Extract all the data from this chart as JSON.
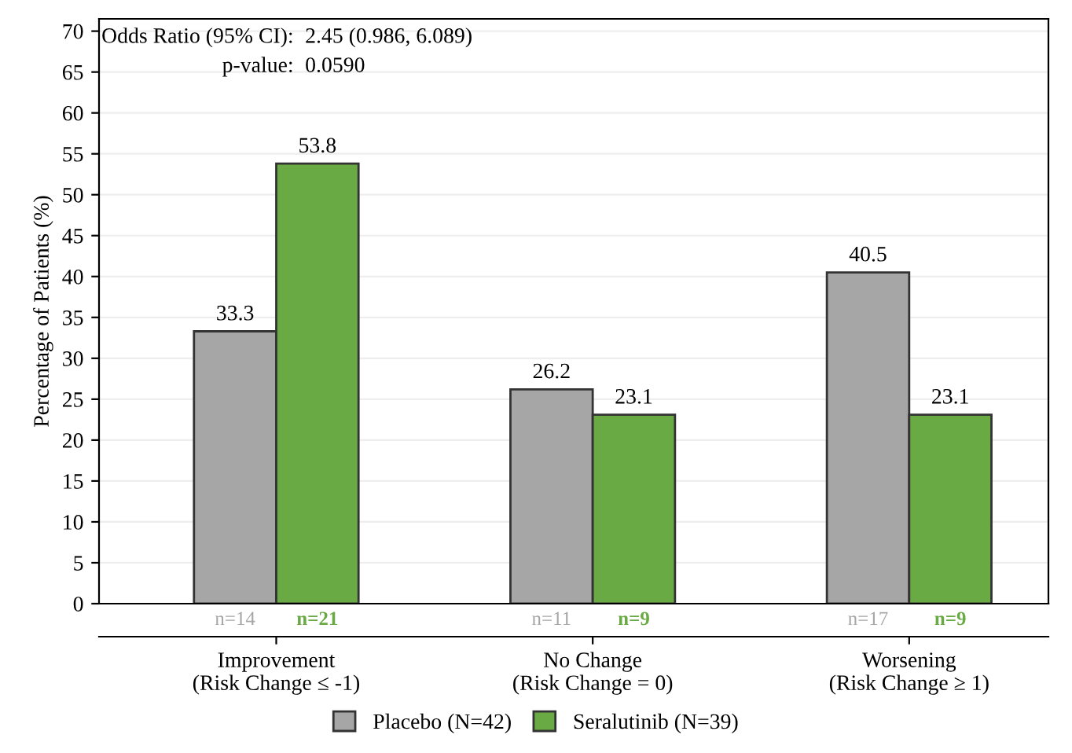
{
  "chart_data": {
    "type": "bar",
    "ylabel": "Percentage of Patients (%)",
    "categories": [
      "Improvement\n(Risk Change ≤ -1)",
      "No Change\n(Risk Change = 0)",
      "Worsening\n(Risk Change ≥ 1)"
    ],
    "series": [
      {
        "name": "Placebo (N=42)",
        "color": "#a6a6a6",
        "values": [
          33.3,
          26.2,
          40.5
        ]
      },
      {
        "name": "Seralutinib (N=39)",
        "color": "#6aaa45",
        "values": [
          53.8,
          23.1,
          23.1
        ]
      }
    ],
    "ylim": [
      0,
      71.5
    ],
    "yticks": [
      0,
      5,
      10,
      15,
      20,
      25,
      30,
      35,
      40,
      45,
      50,
      55,
      60,
      65,
      70
    ],
    "grid": "y",
    "legend": "bottom",
    "data_labels": true,
    "annotations": [
      "Odds Ratio (95% CI):",
      "2.45 (0.986, 6.089)",
      "p-value:",
      "0.0590",
      "n=14",
      "n=21",
      "n=11",
      "n=9",
      "n=17",
      "n=9"
    ]
  }
}
